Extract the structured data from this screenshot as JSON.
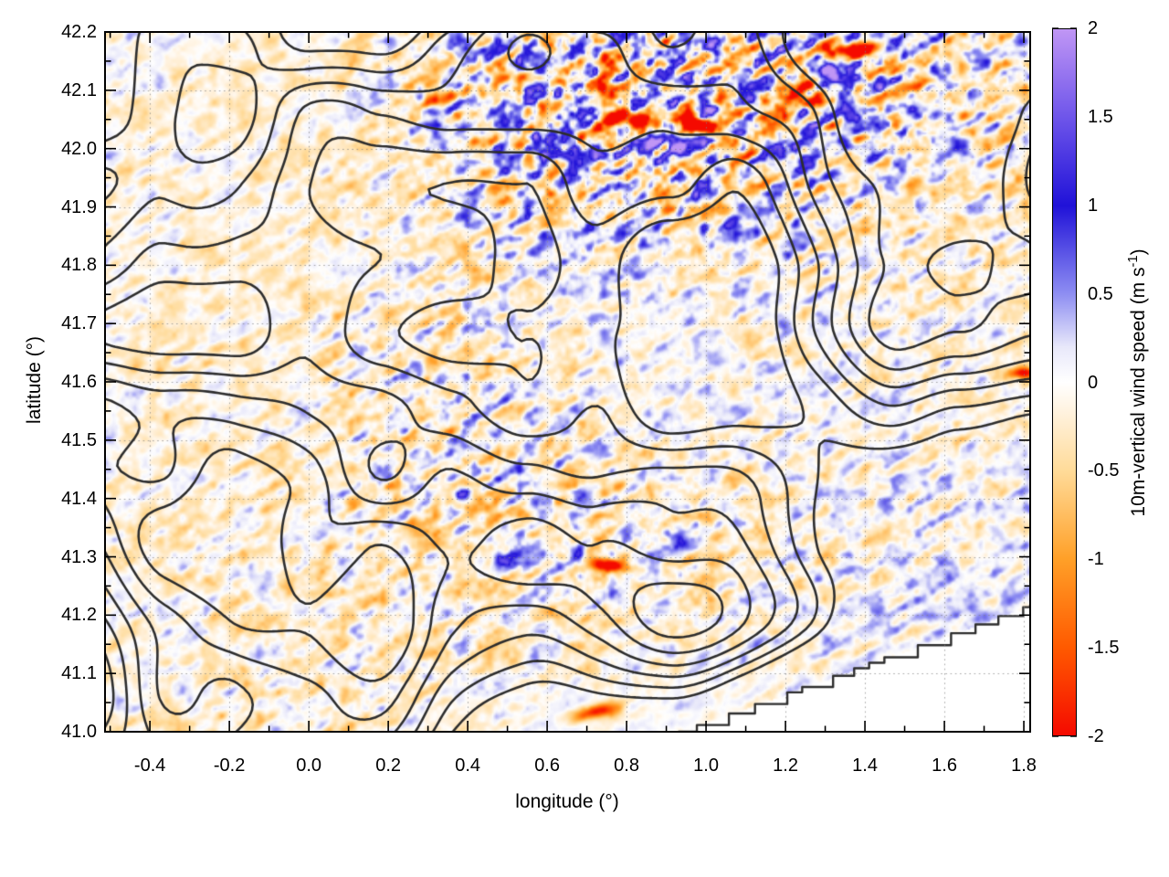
{
  "figure": {
    "background": "#ffffff"
  },
  "chart_data": {
    "type": "heatmap",
    "title": "",
    "xlabel": "longitude (°)",
    "ylabel": "latitude (°)",
    "x_range": [
      -0.513,
      1.816
    ],
    "y_range": [
      41.0,
      42.2
    ],
    "x_ticks": {
      "values": [
        -0.4,
        -0.2,
        0.0,
        0.2,
        0.4,
        0.6,
        0.8,
        1.0,
        1.2,
        1.4,
        1.6,
        1.8
      ],
      "labels": [
        "-0.4",
        "-0.2",
        "0.0",
        "0.2",
        "0.4",
        "0.6",
        "0.8",
        "1.0",
        "1.2",
        "1.4",
        "1.6",
        "1.8"
      ],
      "minor_step": 0.1
    },
    "y_ticks": {
      "values": [
        41.0,
        41.1,
        41.2,
        41.3,
        41.4,
        41.5,
        41.6,
        41.7,
        41.8,
        41.9,
        42.0,
        42.1,
        42.2
      ],
      "labels": [
        "41.0",
        "41.1",
        "41.2",
        "41.3",
        "41.4",
        "41.5",
        "41.6",
        "41.7",
        "41.8",
        "41.9",
        "42.0",
        "42.1",
        "42.2"
      ],
      "minor_step": 0.05
    },
    "grid": {
      "shown": true,
      "style": "dotted",
      "color": "#828282"
    },
    "contours": {
      "meaning": "terrain elevation contour lines overlaid on the wind field",
      "color": "#2d2d2d",
      "line_width": 2.6,
      "levels": [
        0.15,
        0.3,
        0.45,
        0.6,
        0.75,
        0.9
      ]
    },
    "no_data_region": {
      "description": "white stair-step bounded region in the bottom-right corner (outside model domain)",
      "start": [
        0.93,
        41.0
      ],
      "end": [
        1.816,
        41.218
      ],
      "style": "stair-step",
      "fill": "#ffffff"
    },
    "colorbar": {
      "label_prefix": "10m-vertical wind speed (m s",
      "label_sup": "-1",
      "label_suffix": ")",
      "min": -2,
      "max": 2,
      "tick_values": [
        2,
        1.5,
        1,
        0.5,
        0,
        -0.5,
        -1,
        -1.5,
        -2
      ],
      "tick_labels": [
        "2",
        "1.5",
        "1",
        "0.5",
        "0",
        "-0.5",
        "-1",
        "-1.5",
        "-2"
      ],
      "palette_stops": [
        {
          "t": -2.0,
          "color": "#f50a00"
        },
        {
          "t": -1.5,
          "color": "#ff5a00"
        },
        {
          "t": -1.0,
          "color": "#ffa028"
        },
        {
          "t": -0.5,
          "color": "#ffdb99"
        },
        {
          "t": -0.2,
          "color": "#fff0d8"
        },
        {
          "t": 0.0,
          "color": "#ffffff"
        },
        {
          "t": 0.2,
          "color": "#e8e8fa"
        },
        {
          "t": 0.5,
          "color": "#8e8ef2"
        },
        {
          "t": 1.0,
          "color": "#2012d8"
        },
        {
          "t": 1.5,
          "color": "#6e55ea"
        },
        {
          "t": 2.0,
          "color": "#c096f5"
        }
      ]
    },
    "field": {
      "units": "m s-1",
      "description": "mottled mountain-wave vertical wind speed field: alternating small orange (downdraft) and blue (updraft) streaks over mountainous terrain, pale over the plain",
      "hotspots": [
        {
          "lon": 0.78,
          "lat": 42.052,
          "sx": 0.105,
          "sy": 0.014,
          "rot": -4,
          "amp": -2.6
        },
        {
          "lon": 0.97,
          "lat": 42.042,
          "sx": 0.05,
          "sy": 0.013,
          "rot": -8,
          "amp": -2.4
        },
        {
          "lon": 1.37,
          "lat": 42.166,
          "sx": 0.08,
          "sy": 0.013,
          "rot": 6,
          "amp": -2.6
        },
        {
          "lon": 1.24,
          "lat": 42.1,
          "sx": 0.032,
          "sy": 0.011,
          "rot": 20,
          "amp": -1.8
        },
        {
          "lon": 0.335,
          "lat": 42.09,
          "sx": 0.038,
          "sy": 0.011,
          "rot": 12,
          "amp": -1.9
        },
        {
          "lon": 0.62,
          "lat": 42.115,
          "sx": 0.03,
          "sy": 0.009,
          "rot": 0,
          "amp": -1.6
        },
        {
          "lon": 0.755,
          "lat": 41.285,
          "sx": 0.05,
          "sy": 0.011,
          "rot": -5,
          "amp": -2.3
        },
        {
          "lon": 0.73,
          "lat": 41.035,
          "sx": 0.055,
          "sy": 0.012,
          "rot": 8,
          "amp": -1.9
        },
        {
          "lon": 1.8,
          "lat": 41.615,
          "sx": 0.035,
          "sy": 0.009,
          "rot": 0,
          "amp": -1.8
        },
        {
          "lon": 0.705,
          "lat": 42.058,
          "sx": 0.035,
          "sy": 0.013,
          "rot": 0,
          "amp": 2.4
        },
        {
          "lon": 0.87,
          "lat": 42.008,
          "sx": 0.05,
          "sy": 0.02,
          "rot": 0,
          "amp": 1.7
        },
        {
          "lon": 0.9,
          "lat": 42.12,
          "sx": 0.04,
          "sy": 0.016,
          "rot": 0,
          "amp": 1.5
        },
        {
          "lon": 1.305,
          "lat": 42.135,
          "sx": 0.022,
          "sy": 0.012,
          "rot": 0,
          "amp": 1.9
        },
        {
          "lon": 0.39,
          "lat": 41.405,
          "sx": 0.022,
          "sy": 0.011,
          "rot": 0,
          "amp": 1.6
        },
        {
          "lon": 0.49,
          "lat": 41.295,
          "sx": 0.025,
          "sy": 0.012,
          "rot": 0,
          "amp": 1.5
        },
        {
          "lon": 0.67,
          "lat": 41.31,
          "sx": 0.02,
          "sy": 0.011,
          "rot": 0,
          "amp": 1.4
        },
        {
          "lon": 0.93,
          "lat": 41.33,
          "sx": 0.03,
          "sy": 0.013,
          "rot": -20,
          "amp": 1.2
        },
        {
          "lon": 1.07,
          "lat": 41.86,
          "sx": 0.026,
          "sy": 0.016,
          "rot": 0,
          "amp": 1.1
        }
      ]
    }
  }
}
